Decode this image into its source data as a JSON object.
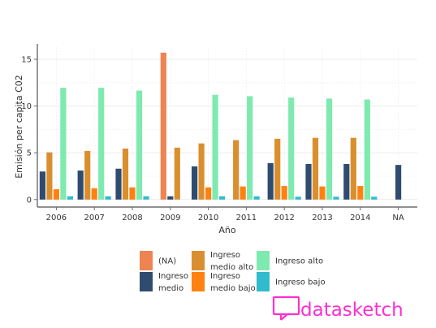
{
  "chart_data": {
    "type": "bar",
    "xlabel": "Año",
    "ylabel": "Emisión per capita C02",
    "ylim": [
      -0.8,
      16.3
    ],
    "yticks": [
      0,
      5,
      10,
      15
    ],
    "grid": true,
    "legend_position": "bottom",
    "categories": [
      "2006",
      "2007",
      "2008",
      "2009",
      "2010",
      "2011",
      "2012",
      "2013",
      "2014",
      "NA"
    ],
    "series": [
      {
        "name": "(NA)",
        "color": "#EE8452",
        "values": [
          null,
          null,
          null,
          15.7,
          null,
          null,
          null,
          null,
          null,
          null
        ]
      },
      {
        "name": "Ingreso medio",
        "color": "#2F4C70",
        "values": [
          3.0,
          3.1,
          3.3,
          0.35,
          3.55,
          null,
          3.9,
          3.8,
          3.8,
          3.7
        ]
      },
      {
        "name": "Ingreso medio alto",
        "color": "#DA8F2F",
        "values": [
          5.05,
          5.2,
          5.45,
          5.55,
          6.0,
          6.35,
          6.5,
          6.6,
          6.6,
          null
        ]
      },
      {
        "name": "Ingreso medio bajo",
        "color": "#FF8111",
        "values": [
          1.1,
          1.2,
          1.3,
          null,
          1.3,
          1.4,
          1.45,
          1.4,
          1.45,
          null
        ]
      },
      {
        "name": "Ingreso alto",
        "color": "#7EEAAF",
        "values": [
          11.95,
          11.95,
          11.65,
          null,
          11.2,
          11.05,
          10.9,
          10.8,
          10.7,
          null
        ]
      },
      {
        "name": "Ingreso bajo",
        "color": "#32BACD",
        "values": [
          0.35,
          0.35,
          0.35,
          null,
          0.35,
          0.35,
          0.3,
          0.3,
          0.3,
          null
        ]
      }
    ]
  },
  "legend": {
    "items": [
      {
        "label": "(NA)",
        "color": "#EE8452"
      },
      {
        "label": "Ingreso\nmedio",
        "color": "#2F4C70"
      },
      {
        "label": "Ingreso\nmedio alto",
        "color": "#DA8F2F"
      },
      {
        "label": "Ingreso\nmedio bajo",
        "color": "#FF8111"
      },
      {
        "label": "Ingreso alto",
        "color": "#7EEAAF"
      },
      {
        "label": "Ingreso bajo",
        "color": "#32BACD"
      }
    ]
  },
  "brand": {
    "text": "datasketch",
    "color": "#FF2FD0"
  }
}
